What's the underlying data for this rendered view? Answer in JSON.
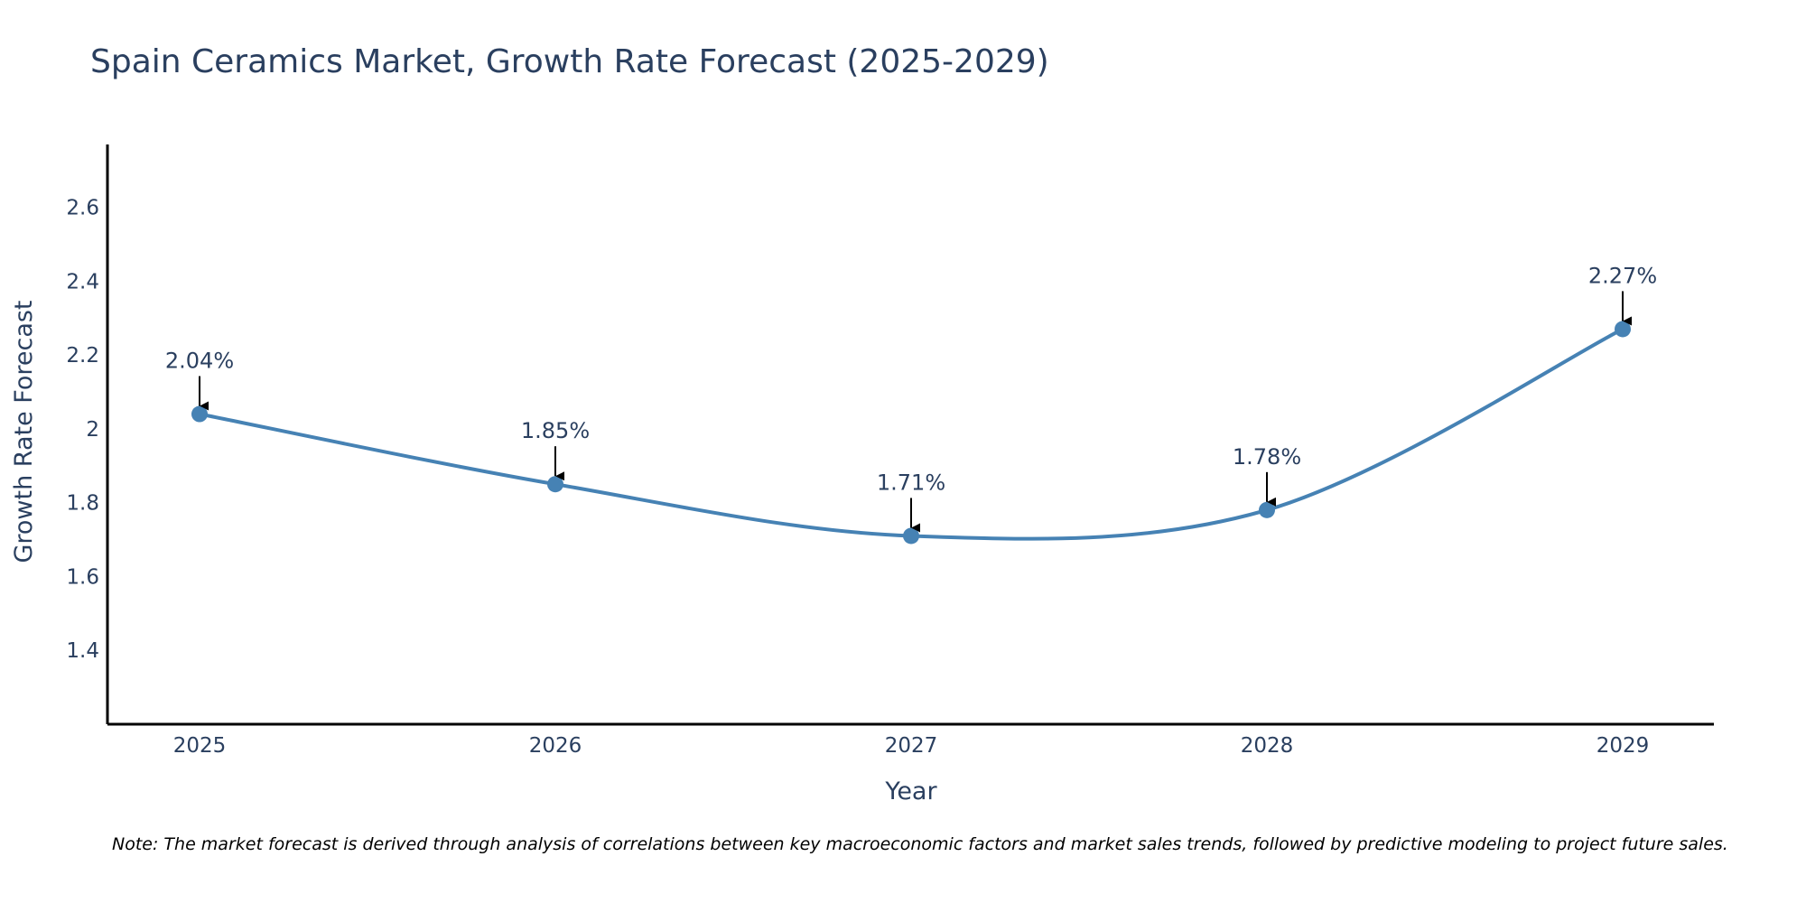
{
  "chart_data": {
    "type": "line",
    "title": "Spain Ceramics Market, Growth Rate Forecast (2025-2029)",
    "xlabel": "Year",
    "ylabel": "Growth Rate Forecast",
    "categories": [
      "2025",
      "2026",
      "2027",
      "2028",
      "2029"
    ],
    "values": [
      2.04,
      1.85,
      1.71,
      1.78,
      2.27
    ],
    "data_labels": [
      "2.04%",
      "1.85%",
      "1.71%",
      "1.78%",
      "2.27%"
    ],
    "ylim": [
      1.2,
      2.77
    ],
    "yticks": [
      1.4,
      1.6,
      1.8,
      2,
      2.2,
      2.4,
      2.6
    ],
    "ytick_labels": [
      "1.4",
      "1.6",
      "1.8",
      "2",
      "2.2",
      "2.4",
      "2.6"
    ],
    "grid": false,
    "line_shape": "spline",
    "series_color": "#4682b4",
    "axis_color": "#000000",
    "note": "Note: The market forecast is derived through analysis of correlations between key macroeconomic factors and market sales trends, followed by predictive modeling to project future sales."
  }
}
